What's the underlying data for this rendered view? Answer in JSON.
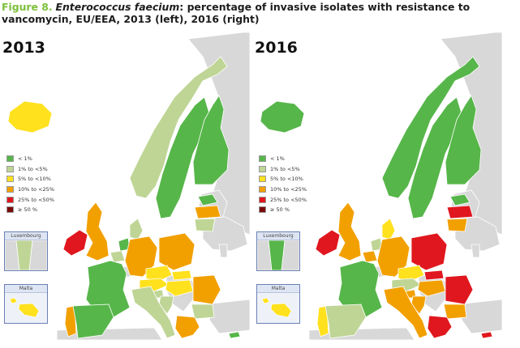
{
  "caption": {
    "figure_label": "Figure 8.",
    "species": "Enterococcus faecium",
    "text": ": percentage of invasive isolates with resistance to vancomycin, EU/EEA, 2013 (left), 2016 (right)"
  },
  "legend": [
    {
      "label": "< 1%",
      "color": "#57b64a"
    },
    {
      "label": "1% to <5%",
      "color": "#bfd596"
    },
    {
      "label": "5% to <10%",
      "color": "#ffe11e"
    },
    {
      "label": "10% to <25%",
      "color": "#f2a000"
    },
    {
      "label": "25% to <50%",
      "color": "#e0171e"
    },
    {
      "label": "≥ 50 %",
      "color": "#7a0a0a"
    }
  ],
  "colors": {
    "no_data": "#d8d8d8",
    "sea": "#ffffff",
    "border": "#ffffff"
  },
  "insets": {
    "luxembourg": "Luxembourg",
    "malta": "Malta"
  },
  "maps": [
    {
      "year": "2013",
      "luxembourg_class": 1,
      "malta_class": 2,
      "classes": {
        "iceland": 2,
        "norway": 1,
        "sweden": 0,
        "finland": 0,
        "estonia": 0,
        "latvia": 3,
        "lithuania": 1,
        "ireland": 4,
        "uk": 3,
        "denmark": 1,
        "netherlands": 0,
        "belgium": 1,
        "france": 0,
        "portugal": 3,
        "spain": 0,
        "germany": 3,
        "poland": 3,
        "czechia": 2,
        "austria": 2,
        "slovakia": 2,
        "hungary": 2,
        "slovenia": 1,
        "croatia": 1,
        "italy": 1,
        "romania": 3,
        "bulgaria": 1,
        "greece": 3,
        "cyprus": 0
      }
    },
    {
      "year": "2016",
      "luxembourg_class": 0,
      "malta_class": 2,
      "classes": {
        "iceland": 0,
        "norway": 0,
        "sweden": 0,
        "finland": 0,
        "estonia": 0,
        "latvia": 4,
        "lithuania": 3,
        "ireland": 4,
        "uk": 3,
        "denmark": 2,
        "netherlands": 1,
        "belgium": 3,
        "france": 0,
        "portugal": 2,
        "spain": 1,
        "germany": 3,
        "poland": 4,
        "czechia": 2,
        "austria": 1,
        "slovakia": 4,
        "hungary": 3,
        "slovenia": 3,
        "croatia": 3,
        "italy": 3,
        "romania": 4,
        "bulgaria": 3,
        "greece": 4,
        "cyprus": 4
      }
    }
  ]
}
